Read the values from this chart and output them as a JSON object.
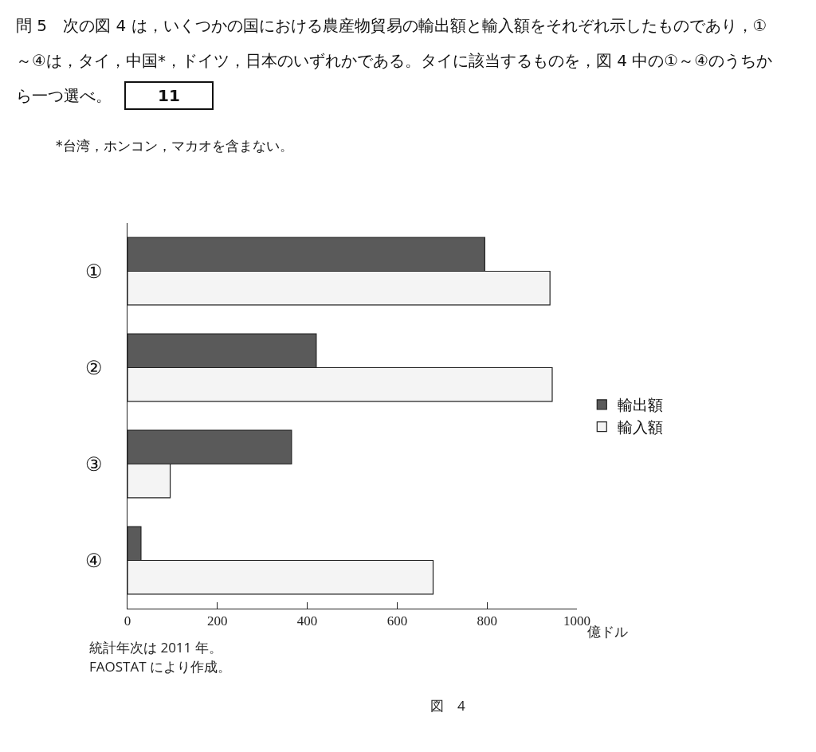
{
  "chart_data": {
    "type": "bar",
    "orientation": "horizontal",
    "title": "問 5　次の図 4 は，いくつかの国における農産物貿易の輸出額と輸入額をそれぞれ示したものであり，①～④は，タイ，中国*，ドイツ，日本のいずれかである。タイに該当するものを，図 4 中の①～④のうちから一つ選べ。",
    "annotations": [
      "11",
      "*台湾，ホンコン，マカオを含まない。",
      "統計年次は 2011 年。",
      "FAOSTAT により作成。",
      "図　4"
    ],
    "xlabel": "億ドル",
    "categories": [
      "①",
      "②",
      "③",
      "④"
    ],
    "series": [
      {
        "name": "輸出額",
        "color": "#5a5a5a",
        "values": [
          795,
          420,
          365,
          30
        ]
      },
      {
        "name": "輸入額",
        "color": "#f4f4f4",
        "values": [
          940,
          945,
          95,
          680
        ]
      }
    ],
    "xlim": [
      0,
      1000
    ],
    "xticks": [
      0,
      200,
      400,
      600,
      800,
      1000
    ],
    "grid": false,
    "legend": "right"
  }
}
